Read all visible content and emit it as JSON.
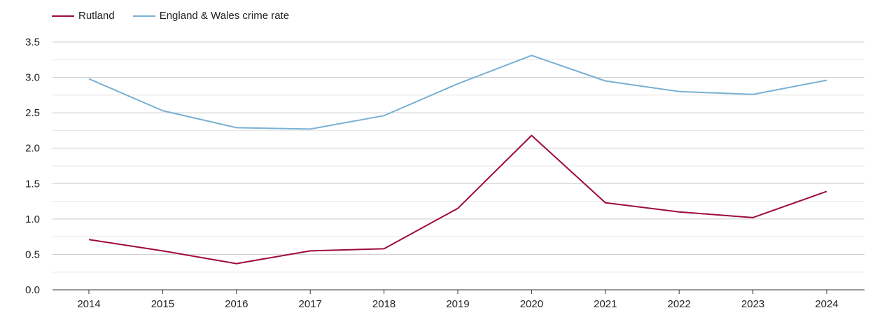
{
  "chart_data": {
    "type": "line",
    "x": [
      "2014",
      "2015",
      "2016",
      "2017",
      "2018",
      "2019",
      "2020",
      "2021",
      "2022",
      "2023",
      "2024"
    ],
    "series": [
      {
        "name": "Rutland",
        "color": "#9e0b3a",
        "values": [
          0.71,
          0.55,
          0.37,
          0.55,
          0.58,
          1.15,
          2.18,
          1.23,
          1.1,
          1.02,
          1.39
        ]
      },
      {
        "name": "England & Wales crime rate",
        "color": "#7ab0d4",
        "values": [
          2.98,
          2.53,
          2.29,
          2.27,
          2.46,
          2.91,
          3.31,
          2.95,
          2.8,
          2.76,
          2.96
        ]
      }
    ],
    "yticks": [
      "0.0",
      "0.5",
      "1.0",
      "1.5",
      "2.0",
      "2.5",
      "3.0",
      "3.5"
    ],
    "ylim": [
      0,
      3.5
    ],
    "grid": true,
    "legend_position": "top-left",
    "title": "",
    "xlabel": "",
    "ylabel": ""
  }
}
